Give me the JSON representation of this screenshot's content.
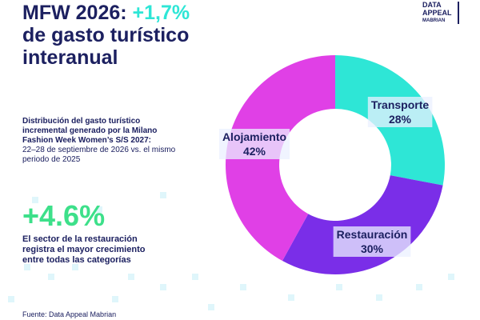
{
  "header": {
    "title_prefix": "MFW 2026: ",
    "title_highlight": "+1,7%",
    "title_lines": [
      "de gasto turístico",
      "interanual"
    ]
  },
  "logo": [
    "DATA",
    "APPEAL",
    "MABRIAN"
  ],
  "description": {
    "bold_lines": [
      "Distribución del gasto turístico",
      "incremental generado por la Milano",
      "Fashion Week Women’s S/S 2027:"
    ],
    "lines": [
      "22–28 de septiembre de 2026 vs. el mismo",
      "periodo de 2025"
    ]
  },
  "highlight": {
    "value": "+4.6%",
    "lines": [
      "El sector de la restauración",
      "registra el mayor crecimiento",
      "entre todas las categorías"
    ]
  },
  "source": "Fuente: Data Appeal Mabrian",
  "chart_data": {
    "type": "donut",
    "categories": [
      "Transporte",
      "Restauración",
      "Alojamiento"
    ],
    "values": [
      28,
      30,
      42
    ],
    "value_labels": [
      "28%",
      "30%",
      "42%"
    ],
    "colors": [
      "#2ee6d6",
      "#7a2ee8",
      "#e040e6"
    ]
  }
}
